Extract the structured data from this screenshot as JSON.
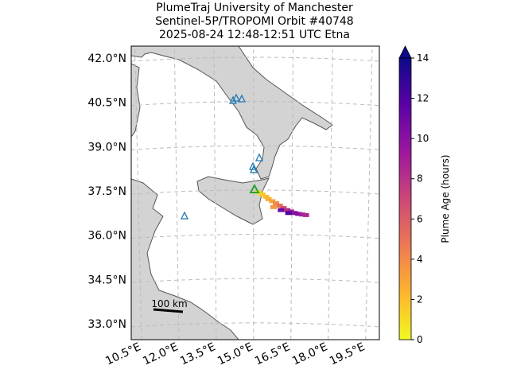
{
  "map": {
    "title": [
      "PlumeTraj    University of Manchester",
      "Sentinel-5P/TROPOMI Orbit #40748",
      "2025-08-24    12:48-12:51 UTC    Etna"
    ],
    "lat_ticks": [
      {
        "value": 42,
        "label": "42.0°N"
      },
      {
        "value": 40.5,
        "label": "40.5°N"
      },
      {
        "value": 39,
        "label": "39.0°N"
      },
      {
        "value": 37.5,
        "label": "37.5°N"
      },
      {
        "value": 36,
        "label": "36.0°N"
      },
      {
        "value": 34.5,
        "label": "34.5°N"
      },
      {
        "value": 33,
        "label": "33.0°N"
      }
    ],
    "lon_ticks": [
      {
        "value": 10.5,
        "label": "10.5°E"
      },
      {
        "value": 12,
        "label": "12.0°E"
      },
      {
        "value": 13.5,
        "label": "13.5°E"
      },
      {
        "value": 15,
        "label": "15.0°E"
      },
      {
        "value": 16.5,
        "label": "16.5°E"
      },
      {
        "value": 18,
        "label": "18.0°E"
      },
      {
        "value": 19.5,
        "label": "19.5°E"
      }
    ],
    "colorbar": {
      "label": "Plume Age (hours)",
      "lim": [
        0,
        14
      ],
      "ticks": [
        0,
        2,
        4,
        6,
        8,
        10,
        12,
        14
      ],
      "colors": [
        "#f0f921",
        "#fdb42f",
        "#ed7953",
        "#cc4778",
        "#9c179e",
        "#5c01a6",
        "#0d0887"
      ]
    },
    "scale_bar": {
      "label": "100 km"
    },
    "plume": {
      "lon": [
        15.2,
        15.35,
        15.5,
        15.6,
        15.75,
        15.9,
        16.05,
        16.2,
        16.35,
        16.5,
        16.65,
        16.8,
        16.95,
        17.1,
        15.8,
        16.1,
        16.4
      ],
      "lat": [
        37.45,
        37.38,
        37.3,
        37.22,
        37.15,
        37.08,
        37.0,
        36.92,
        36.85,
        36.8,
        36.75,
        36.72,
        36.7,
        36.68,
        36.95,
        36.85,
        36.75
      ],
      "age": [
        1,
        1.5,
        2,
        2.5,
        3,
        4,
        5,
        6.5,
        8,
        9,
        10,
        10.5,
        9,
        8.5,
        3.5,
        11,
        12
      ]
    }
  }
}
